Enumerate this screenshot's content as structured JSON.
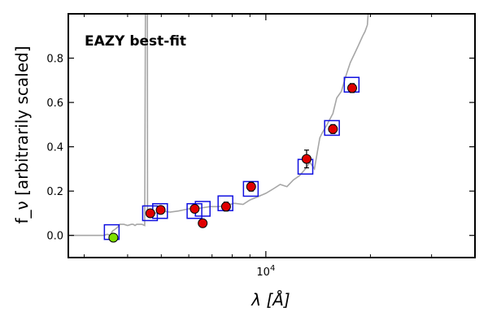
{
  "chart_data": {
    "type": "scatter",
    "title": "",
    "annotation": "EAZY best-fit",
    "xlabel": "λ [Å]",
    "ylabel": "f_ν [arbitrarily scaled]",
    "x_scale": "log",
    "xlim": [
      2700,
      40000
    ],
    "ylim": [
      -0.1,
      1.0
    ],
    "x_tick_labels": [
      {
        "value": 10000,
        "label": "10^4"
      }
    ],
    "y_tick_labels": [
      {
        "value": 0.0,
        "label": "0.0"
      },
      {
        "value": 0.2,
        "label": "0.2"
      },
      {
        "value": 0.4,
        "label": "0.4"
      },
      {
        "value": 0.6,
        "label": "0.6"
      },
      {
        "value": 0.8,
        "label": "0.8"
      }
    ],
    "grid": false,
    "colors": {
      "template": "#a6a6a6",
      "model_box": "#1010e0",
      "observed": "#e00000",
      "observed_edge": "#000000",
      "uv_point": "#7fe000",
      "annotation": "#e00000"
    },
    "series": [
      {
        "kind": "template",
        "x": [
          2700,
          3400,
          3500,
          3560,
          3620,
          3700,
          3760,
          3800,
          3900,
          4000,
          4100,
          4150,
          4200,
          4250,
          4300,
          4400,
          4480,
          4500,
          4560,
          4565,
          4570,
          4600,
          4800,
          5000,
          5300,
          5600,
          6000,
          6300,
          6600,
          6900,
          7300,
          7700,
          8100,
          8600,
          9000,
          9500,
          10000,
          10500,
          11000,
          11500,
          12000,
          12500,
          13000,
          13400,
          13800,
          14300,
          14500,
          15000,
          15600,
          16000,
          16500,
          17000,
          17500,
          18000,
          18500,
          19000,
          19300,
          19600,
          19700
        ],
        "y": [
          0.0,
          0.0,
          0.005,
          0.0,
          0.02,
          0.03,
          0.04,
          0.05,
          0.05,
          0.045,
          0.05,
          0.05,
          0.045,
          0.05,
          0.05,
          0.05,
          0.045,
          1.0,
          1.0,
          0.09,
          0.1,
          0.1,
          0.1,
          0.11,
          0.105,
          0.11,
          0.12,
          0.12,
          0.125,
          0.13,
          0.13,
          0.135,
          0.145,
          0.14,
          0.16,
          0.175,
          0.19,
          0.21,
          0.23,
          0.22,
          0.25,
          0.27,
          0.3,
          0.33,
          0.3,
          0.44,
          0.46,
          0.5,
          0.55,
          0.62,
          0.65,
          0.72,
          0.78,
          0.82,
          0.86,
          0.9,
          0.92,
          0.95,
          1.0
        ]
      },
      {
        "kind": "model_boxes",
        "x": [
          3600,
          4640,
          4960,
          6230,
          6580,
          7650,
          9050,
          13000,
          15500,
          17660
        ],
        "y": [
          0.015,
          0.1,
          0.11,
          0.11,
          0.12,
          0.145,
          0.21,
          0.31,
          0.485,
          0.68
        ]
      },
      {
        "kind": "observed",
        "x": [
          4650,
          4980,
          6240,
          6580,
          7680,
          9070,
          13100,
          15600,
          17720
        ],
        "y": [
          0.1,
          0.115,
          0.12,
          0.055,
          0.13,
          0.22,
          0.345,
          0.48,
          0.665
        ],
        "err": [
          0.008,
          0.008,
          0.01,
          0.015,
          0.02,
          0.02,
          0.04,
          0.02,
          0.02
        ]
      },
      {
        "kind": "uv_point",
        "x": [
          3640
        ],
        "y": [
          -0.01
        ],
        "err": [
          0.01
        ]
      }
    ]
  }
}
